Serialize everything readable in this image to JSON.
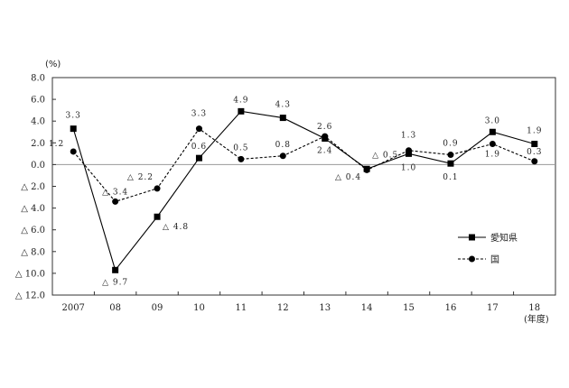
{
  "chart_data": {
    "type": "line",
    "y_unit": "(%)",
    "x_unit": "(年度)",
    "categories": [
      "2007",
      "08",
      "09",
      "10",
      "11",
      "12",
      "13",
      "14",
      "15",
      "16",
      "17",
      "18"
    ],
    "ylim": [
      -12,
      8
    ],
    "y_ticks": [
      8,
      6,
      4,
      2,
      0,
      -2,
      -4,
      -6,
      -8,
      -10,
      -12
    ],
    "y_tick_labels": [
      "8.0",
      "6.0",
      "4.0",
      "2.0",
      "0.0",
      "△ 2.0",
      "△ 4.0",
      "△ 6.0",
      "△ 8.0",
      "△ 10.0",
      "△ 12.0"
    ],
    "grid": false,
    "legend_position": "right",
    "series": [
      {
        "name": "愛知県",
        "style": "solid",
        "marker": "square",
        "color": "#000000",
        "values": [
          3.3,
          -9.7,
          -4.8,
          0.6,
          4.9,
          4.3,
          2.4,
          -0.4,
          1.0,
          0.1,
          3.0,
          1.9
        ],
        "labels": [
          "3.3",
          "△ 9.7",
          "△ 4.8",
          "0.6",
          "4.9",
          "4.3",
          "2.4",
          "△ 0.4",
          "1.0",
          "0.1",
          "3.0",
          "1.9"
        ]
      },
      {
        "name": "国",
        "style": "dashed",
        "marker": "circle",
        "color": "#000000",
        "values": [
          1.2,
          -3.4,
          -2.2,
          3.3,
          0.5,
          0.8,
          2.6,
          -0.5,
          1.3,
          0.9,
          1.9,
          0.3
        ],
        "labels": [
          "1.2",
          "△ 3.4",
          "△ 2.2",
          "3.3",
          "0.5",
          "0.8",
          "2.6",
          "△ 0.5",
          "1.3",
          "0.9",
          "1.9",
          "0.3"
        ]
      }
    ]
  }
}
